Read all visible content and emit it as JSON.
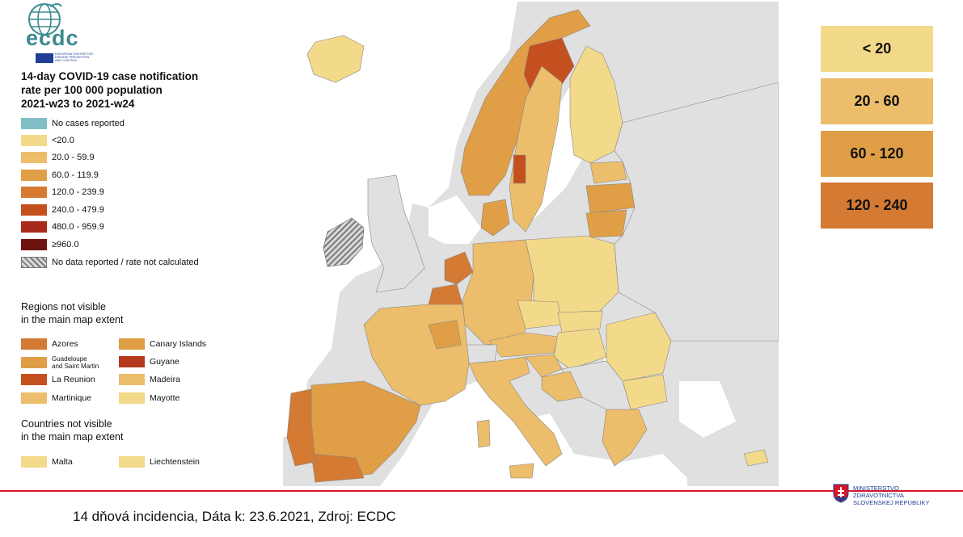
{
  "logo": {
    "wordmark": "ecdc",
    "subtitle": [
      "EUROPEAN CENTRE FOR",
      "DISEASE PREVENTION",
      "AND CONTROL"
    ],
    "icon": "globe-icon"
  },
  "legend": {
    "title_lines": [
      "14-day COVID-19 case notification",
      "rate per 100 000 population",
      "2021-w23 to 2021-w24"
    ],
    "items": [
      {
        "label": "No cases reported",
        "color": "#7fbfc5"
      },
      {
        "label": "<20.0",
        "color": "#f3d98a"
      },
      {
        "label": "20.0 - 59.9",
        "color": "#ecbd6a"
      },
      {
        "label": "60.0 - 119.9",
        "color": "#e09e46"
      },
      {
        "label": "120.0 - 239.9",
        "color": "#d47a33"
      },
      {
        "label": "240.0 - 479.9",
        "color": "#c4501f"
      },
      {
        "label": "480.0 - 959.9",
        "color": "#a82a1b"
      },
      {
        "label": "≥960.0",
        "color": "#6e1410"
      },
      {
        "label": "No data reported / rate not calculated",
        "color": "hatch"
      }
    ]
  },
  "regions_not_visible": {
    "title_lines": [
      "Regions not visible",
      "in the main map extent"
    ],
    "items": [
      {
        "label": "Azores",
        "color": "#d47a33"
      },
      {
        "label": "Canary Islands",
        "color": "#e09e46"
      },
      {
        "label": "Guadeloupe\nand Saint Martin",
        "color": "#e09e46"
      },
      {
        "label": "Guyane",
        "color": "#b33a1c"
      },
      {
        "label": "La Reunion",
        "color": "#c4501f"
      },
      {
        "label": "Madeira",
        "color": "#ecbd6a"
      },
      {
        "label": "Martinique",
        "color": "#ecbd6a"
      },
      {
        "label": "Mayotte",
        "color": "#f3d98a"
      }
    ]
  },
  "countries_not_visible": {
    "title_lines": [
      "Countries not visible",
      "in the main map extent"
    ],
    "items": [
      {
        "label": "Malta",
        "color": "#f3d98a"
      },
      {
        "label": "Liechtenstein",
        "color": "#f3d98a"
      }
    ]
  },
  "right_legend": [
    {
      "label": "< 20",
      "color": "#f3d98a"
    },
    {
      "label": "20 - 60",
      "color": "#ecbd6a"
    },
    {
      "label": "60 - 120",
      "color": "#e09e46"
    },
    {
      "label": "120 - 240",
      "color": "#d47a33"
    }
  ],
  "footer": {
    "text": "14 dňová incidencia, Dáta k: 23.6.2021, Zdroj: ECDC"
  },
  "ministry": {
    "lines": [
      "MINISTERSTVO",
      "ZDRAVOTNÍCTVA",
      "SLOVENSKEJ REPUBLIKY"
    ],
    "icon": "coat-of-arms-icon"
  },
  "map": {
    "sea_color": "#ffffff",
    "non_eu_color": "#e0e0e0",
    "country_colors": {
      "iceland": "#f3d98a",
      "norway": "#e09e46",
      "sweden": "#ecbd6a",
      "finland": "#f3d98a",
      "estonia": "#ecbd6a",
      "latvia": "#e09e46",
      "lithuania": "#e09e46",
      "ireland": "hatch",
      "denmark": "#e09e46",
      "netherlands": "#d47a33",
      "belgium": "#d47a33",
      "germany": "#ecbd6a",
      "poland": "#f3d98a",
      "czechia": "#f3d98a",
      "slovakia": "#f3d98a",
      "hungary": "#f3d98a",
      "austria": "#ecbd6a",
      "france": "#ecbd6a",
      "spain": "#e09e46",
      "portugal": "#d47a33",
      "italy": "#ecbd6a",
      "romania": "#f3d98a",
      "bulgaria": "#f3d98a",
      "greece": "#ecbd6a",
      "croatia": "#ecbd6a",
      "slovenia": "#ecbd6a"
    }
  }
}
